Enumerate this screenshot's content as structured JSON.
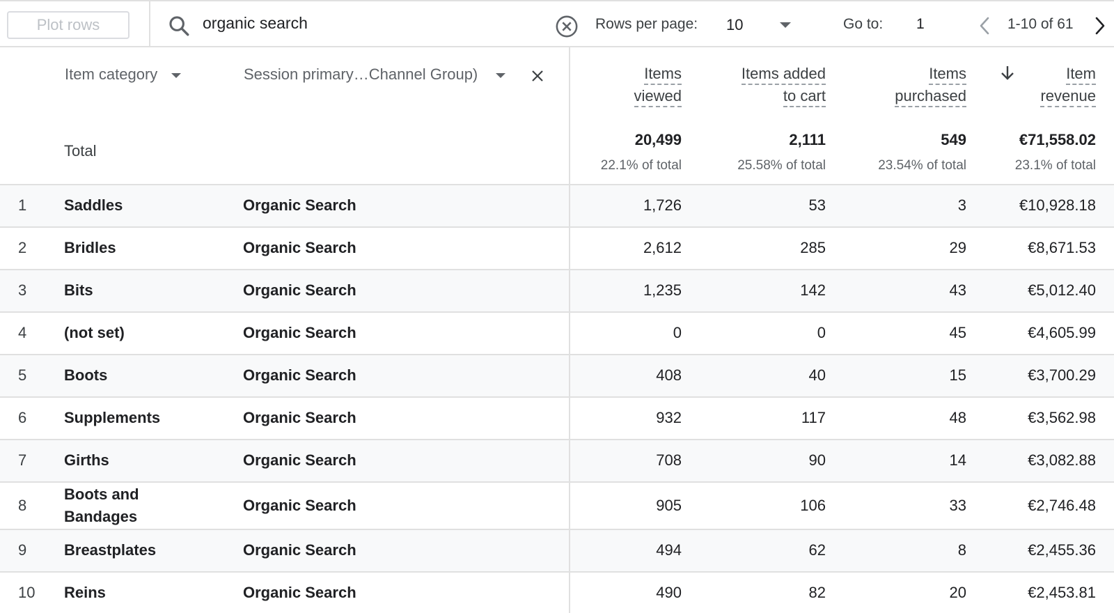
{
  "toolbar": {
    "plot_rows_label": "Plot rows",
    "search_value": "organic search",
    "rows_per_page_label": "Rows per page:",
    "rows_per_page_value": "10",
    "goto_label": "Go to:",
    "goto_value": "1",
    "page_range": "1-10 of 61"
  },
  "header": {
    "dim1": "Item category",
    "dim2": "Session primary…Channel Group)",
    "metrics": [
      {
        "line1": "Items",
        "line2": "viewed"
      },
      {
        "line1": "Items added",
        "line2": "to cart"
      },
      {
        "line1": "Items",
        "line2": "purchased"
      },
      {
        "line1": "Item",
        "line2": "revenue"
      }
    ]
  },
  "total": {
    "label": "Total",
    "values": [
      "20,499",
      "2,111",
      "549",
      "€71,558.02"
    ],
    "pcts": [
      "22.1% of total",
      "25.58% of total",
      "23.54% of total",
      "23.1% of total"
    ]
  },
  "rows": [
    {
      "n": "1",
      "cat": "Saddles",
      "chan": "Organic Search",
      "v": [
        "1,726",
        "53",
        "3",
        "€10,928.18"
      ]
    },
    {
      "n": "2",
      "cat": "Bridles",
      "chan": "Organic Search",
      "v": [
        "2,612",
        "285",
        "29",
        "€8,671.53"
      ]
    },
    {
      "n": "3",
      "cat": "Bits",
      "chan": "Organic Search",
      "v": [
        "1,235",
        "142",
        "43",
        "€5,012.40"
      ]
    },
    {
      "n": "4",
      "cat": "(not set)",
      "chan": "Organic Search",
      "v": [
        "0",
        "0",
        "45",
        "€4,605.99"
      ]
    },
    {
      "n": "5",
      "cat": "Boots",
      "chan": "Organic Search",
      "v": [
        "408",
        "40",
        "15",
        "€3,700.29"
      ]
    },
    {
      "n": "6",
      "cat": "Supplements",
      "chan": "Organic Search",
      "v": [
        "932",
        "117",
        "48",
        "€3,562.98"
      ]
    },
    {
      "n": "7",
      "cat": "Girths",
      "chan": "Organic Search",
      "v": [
        "708",
        "90",
        "14",
        "€3,082.88"
      ]
    },
    {
      "n": "8",
      "cat": "Boots and Bandages",
      "chan": "Organic Search",
      "v": [
        "905",
        "106",
        "33",
        "€2,746.48"
      ]
    },
    {
      "n": "9",
      "cat": "Breastplates",
      "chan": "Organic Search",
      "v": [
        "494",
        "62",
        "8",
        "€2,455.36"
      ]
    },
    {
      "n": "10",
      "cat": "Reins",
      "chan": "Organic Search",
      "v": [
        "490",
        "82",
        "20",
        "€2,453.81"
      ]
    }
  ]
}
